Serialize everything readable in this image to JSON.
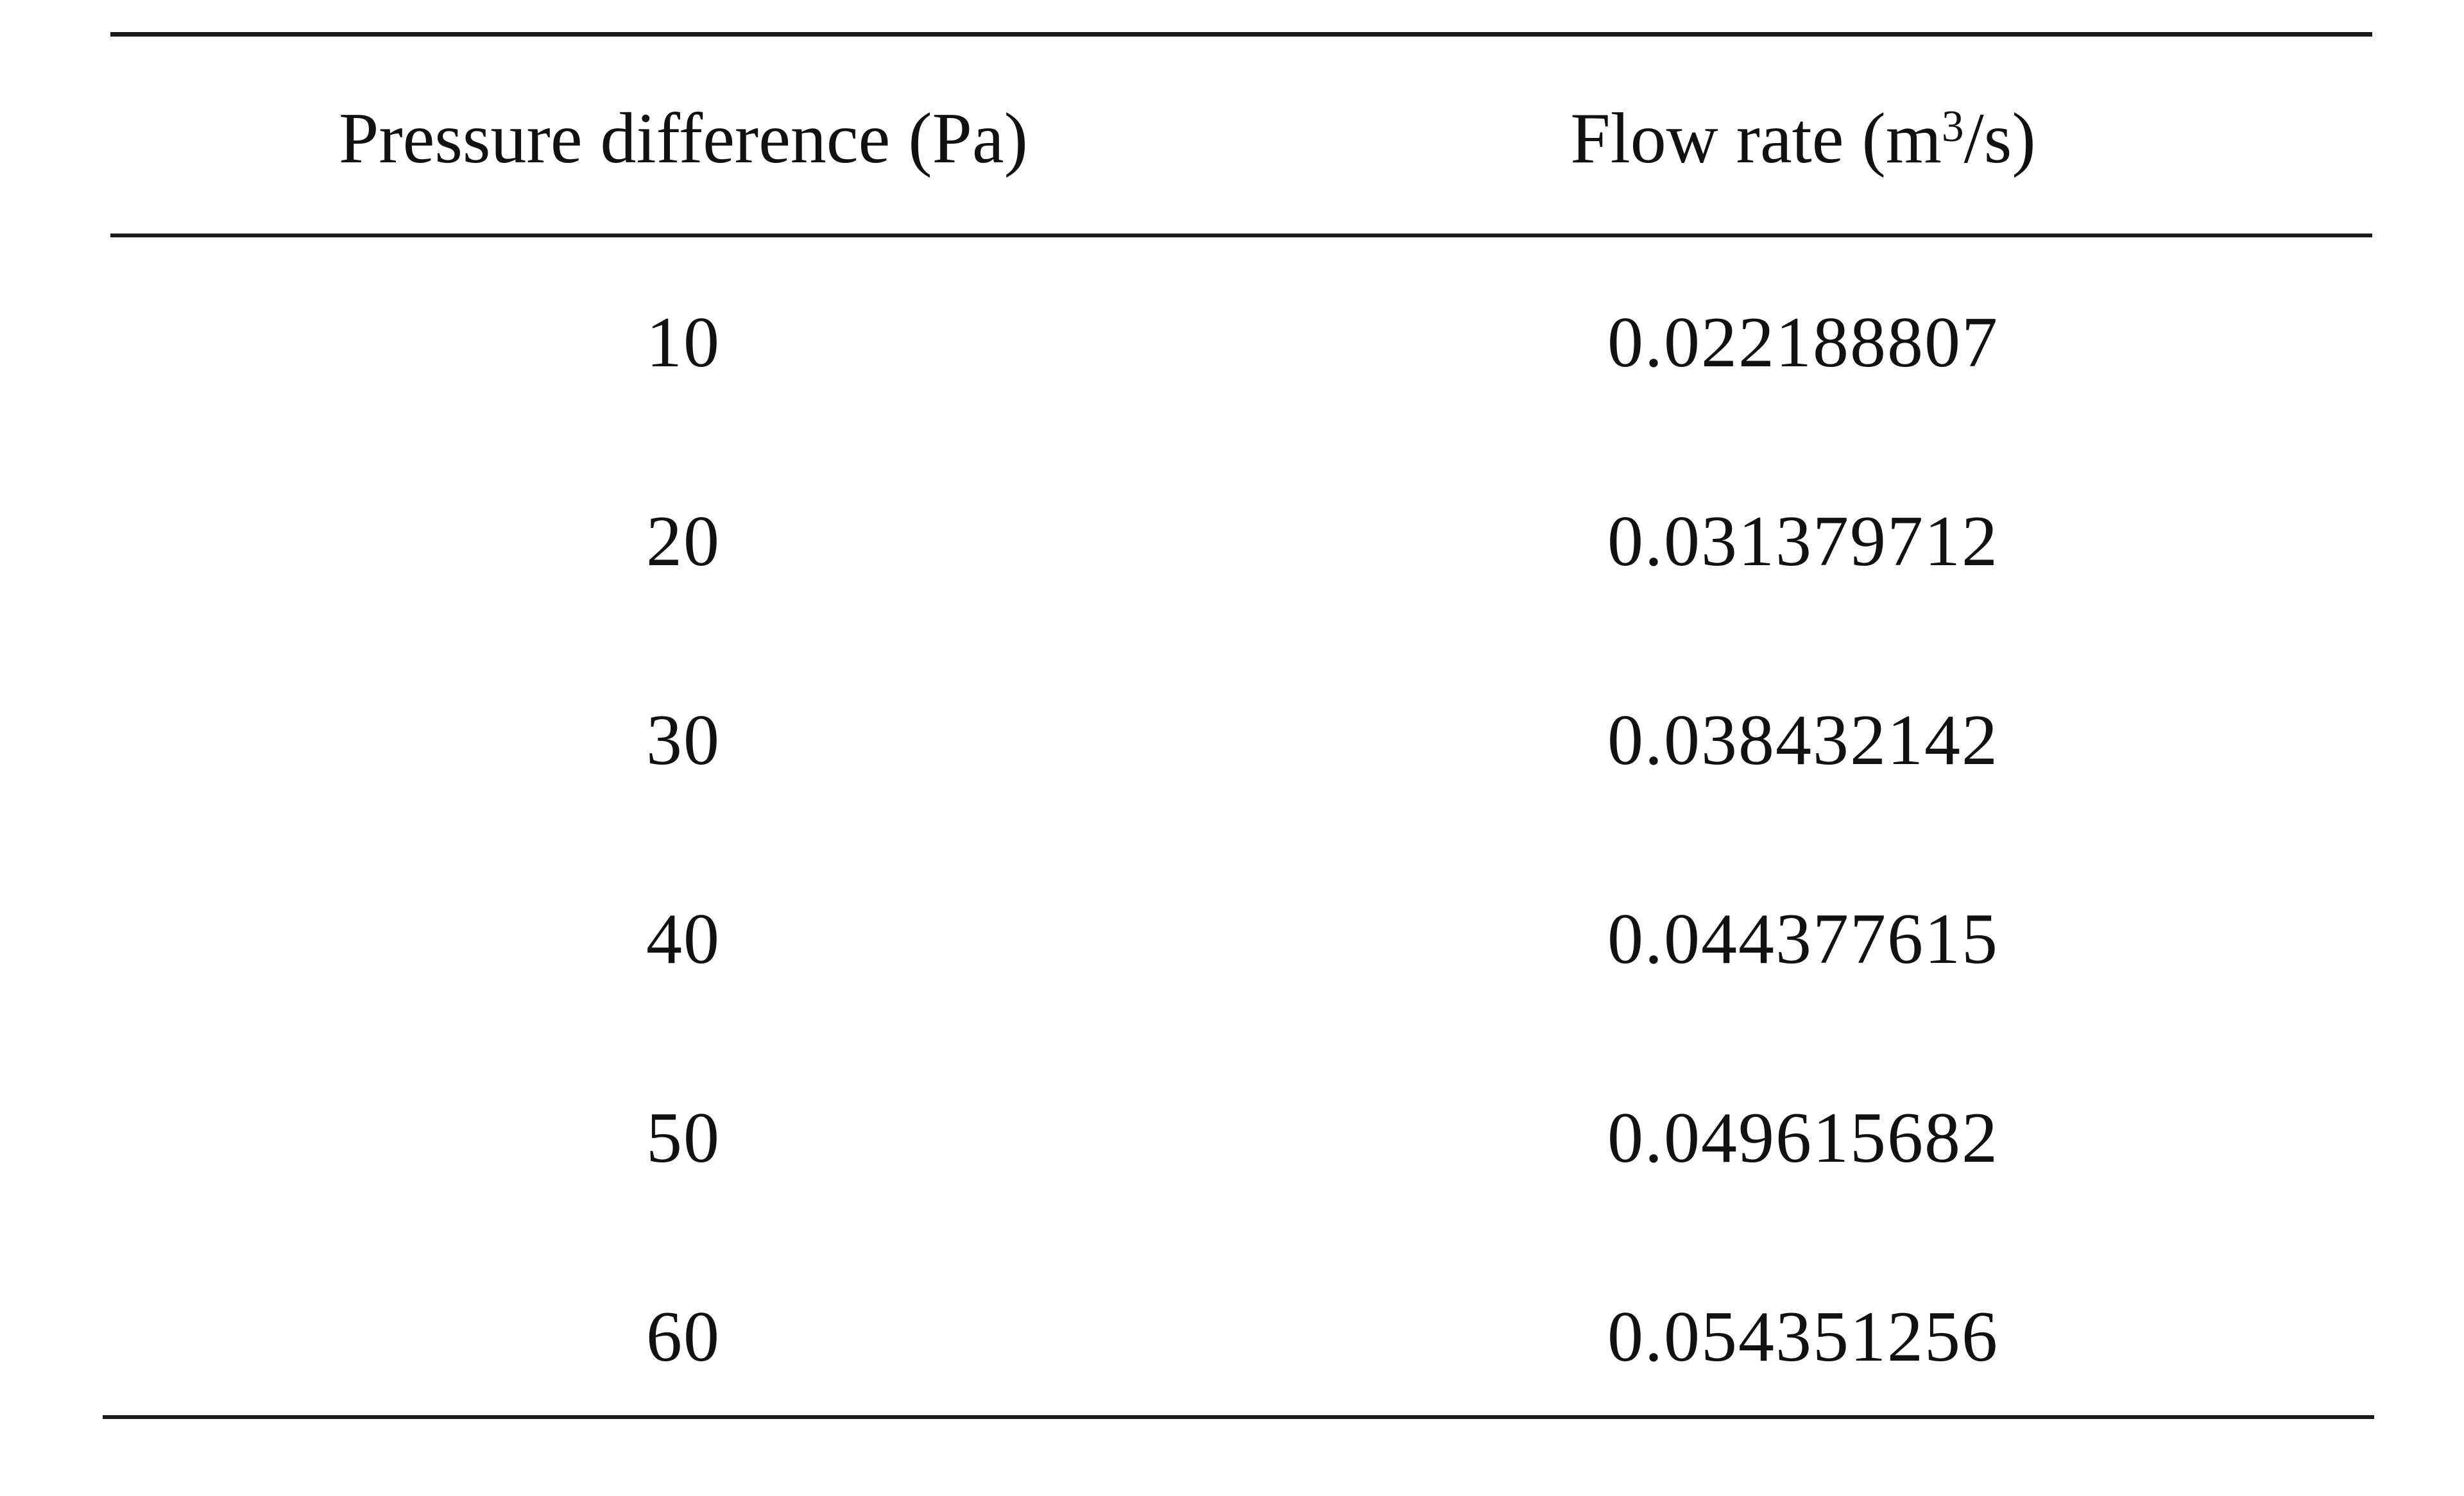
{
  "table": {
    "headers": {
      "pressure": "Pressure difference (Pa)",
      "flow_prefix": "Flow rate (m",
      "flow_sup": "3",
      "flow_suffix": "/s)"
    },
    "rows": [
      {
        "pressure": "10",
        "flow": "0.022188807"
      },
      {
        "pressure": "20",
        "flow": "0.031379712"
      },
      {
        "pressure": "30",
        "flow": "0.038432142"
      },
      {
        "pressure": "40",
        "flow": "0.044377615"
      },
      {
        "pressure": "50",
        "flow": "0.049615682"
      },
      {
        "pressure": "60",
        "flow": "0.054351256"
      }
    ]
  }
}
